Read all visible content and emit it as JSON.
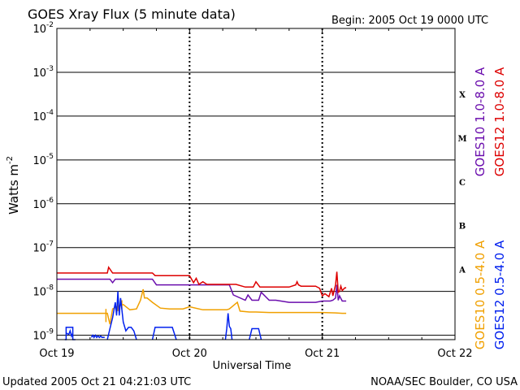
{
  "chart_data": {
    "type": "line",
    "title": "GOES Xray Flux (5 minute data)",
    "begin_label": "Begin:  2005 Oct 19 0000 UTC",
    "xlabel": "Universal Time",
    "ylabel": "Watts m",
    "ylabel_sup": "-2",
    "x_ticks": [
      "Oct 19",
      "Oct 20",
      "Oct 21",
      "Oct 22"
    ],
    "xlim_days": [
      0,
      3
    ],
    "ylim_exp": [
      -9.1,
      -2
    ],
    "log_scale": true,
    "y_ticks": [
      {
        "base": "10",
        "exp": "-2",
        "value": -2
      },
      {
        "base": "10",
        "exp": "-3",
        "value": -3
      },
      {
        "base": "10",
        "exp": "-4",
        "value": -4
      },
      {
        "base": "10",
        "exp": "-5",
        "value": -5
      },
      {
        "base": "10",
        "exp": "-6",
        "value": -6
      },
      {
        "base": "10",
        "exp": "-7",
        "value": -7
      },
      {
        "base": "10",
        "exp": "-8",
        "value": -8
      },
      {
        "base": "10",
        "exp": "-9",
        "value": -9
      }
    ],
    "flare_classes": [
      {
        "label": "X",
        "value": -3.5
      },
      {
        "label": "M",
        "value": -4.5
      },
      {
        "label": "C",
        "value": -5.5
      },
      {
        "label": "B",
        "value": -6.5
      },
      {
        "label": "A",
        "value": -7.5
      }
    ],
    "series": [
      {
        "name": "GOES12 1.0-8.0 A",
        "color": "#dd0000",
        "x": [
          0.0,
          0.38,
          0.39,
          0.42,
          0.44,
          0.72,
          0.74,
          0.8,
          1.0,
          1.03,
          1.05,
          1.07,
          1.1,
          1.13,
          1.15,
          1.17,
          1.2,
          1.25,
          1.35,
          1.42,
          1.48,
          1.5,
          1.53,
          1.6,
          1.75,
          1.8,
          1.81,
          1.82,
          1.84,
          1.95,
          1.98,
          2.0,
          2.02,
          2.05,
          2.07,
          2.08,
          2.1,
          2.11,
          2.12,
          2.13,
          2.14,
          2.15,
          2.17,
          2.18
        ],
        "y": [
          -7.58,
          -7.58,
          -7.45,
          -7.58,
          -7.58,
          -7.58,
          -7.64,
          -7.64,
          -7.64,
          -7.8,
          -7.7,
          -7.84,
          -7.78,
          -7.84,
          -7.84,
          -7.84,
          -7.84,
          -7.84,
          -7.84,
          -7.9,
          -7.9,
          -7.78,
          -7.9,
          -7.9,
          -7.9,
          -7.85,
          -7.78,
          -7.85,
          -7.88,
          -7.88,
          -7.93,
          -8.1,
          -8.05,
          -8.12,
          -7.93,
          -8.1,
          -7.85,
          -7.55,
          -8.02,
          -8.0,
          -7.88,
          -7.98,
          -7.92,
          -7.92
        ]
      },
      {
        "name": "GOES10 1.0-8.0 A",
        "color": "#6a0dad",
        "x": [
          0.0,
          0.4,
          0.42,
          0.44,
          0.72,
          0.75,
          0.8,
          1.0,
          1.2,
          1.3,
          1.33,
          1.42,
          1.44,
          1.47,
          1.52,
          1.54,
          1.6,
          1.65,
          1.75,
          1.85,
          1.95,
          2.0,
          2.04,
          2.06,
          2.08,
          2.1,
          2.11,
          2.12,
          2.13,
          2.15,
          2.18
        ],
        "y": [
          -7.72,
          -7.72,
          -7.8,
          -7.72,
          -7.72,
          -7.85,
          -7.85,
          -7.85,
          -7.85,
          -7.85,
          -8.08,
          -8.2,
          -8.08,
          -8.2,
          -8.2,
          -8.02,
          -8.2,
          -8.2,
          -8.25,
          -8.25,
          -8.25,
          -8.22,
          -8.22,
          -8.22,
          -8.2,
          -8.15,
          -7.85,
          -8.2,
          -8.1,
          -8.22,
          -8.22
        ]
      },
      {
        "name": "GOES10 0.5-4.0 A",
        "color": "#f0a000",
        "x": [
          0.0,
          0.38,
          0.4,
          0.42,
          0.45,
          0.5,
          0.55,
          0.6,
          0.63,
          0.65,
          0.66,
          0.68,
          0.72,
          0.78,
          0.85,
          0.95,
          1.0,
          1.1,
          1.2,
          1.28,
          1.3,
          1.36,
          1.38,
          1.45,
          1.5,
          1.6,
          1.75,
          1.9,
          2.0,
          2.1,
          2.15,
          2.18
        ],
        "y": [
          -8.5,
          -8.5,
          -8.75,
          -8.4,
          -8.35,
          -8.3,
          -8.42,
          -8.4,
          -8.2,
          -7.95,
          -8.15,
          -8.15,
          -8.25,
          -8.38,
          -8.4,
          -8.4,
          -8.35,
          -8.42,
          -8.42,
          -8.42,
          -8.4,
          -8.25,
          -8.45,
          -8.47,
          -8.47,
          -8.48,
          -8.48,
          -8.48,
          -8.48,
          -8.49,
          -8.5,
          -8.5
        ],
        "extra": [
          {
            "x": [
              0.37,
              0.37
            ],
            "y": [
              -8.7,
              -8.4
            ]
          },
          {
            "x": [
              0.46,
              0.46
            ],
            "y": [
              -8.25,
              -8.45
            ]
          },
          {
            "x": [
              0.49,
              0.49
            ],
            "y": [
              -8.2,
              -8.4
            ]
          }
        ]
      },
      {
        "name": "GOES12 0.5-4.0 A",
        "color": "#0020ee",
        "x": [
          0.26,
          0.27,
          0.28,
          0.29,
          0.3,
          0.31,
          0.32,
          0.33,
          0.34,
          0.35,
          0.36
        ],
        "y": [
          -9.05,
          -9.0,
          -9.05,
          -9.0,
          -9.05,
          -9.02,
          -9.05,
          -9.02,
          -9.05,
          -9.05,
          -9.05
        ],
        "extra": [
          {
            "x": [
              0.06,
              0.07,
              0.07,
              0.12,
              0.12,
              0.14
            ],
            "y": [
              -9.1,
              -9.1,
              -8.82,
              -8.82,
              -9.1,
              -9.1
            ]
          },
          {
            "x": [
              0.07,
              0.09,
              0.1,
              0.11,
              0.12
            ],
            "y": [
              -8.95,
              -8.98,
              -8.9,
              -9.02,
              -8.95
            ]
          },
          {
            "x": [
              0.38,
              0.4,
              0.42,
              0.44,
              0.45,
              0.46,
              0.47,
              0.48,
              0.5,
              0.52,
              0.54,
              0.56,
              0.58,
              0.6
            ],
            "y": [
              -9.1,
              -8.85,
              -8.6,
              -8.25,
              -8.55,
              -8.0,
              -8.55,
              -8.15,
              -8.7,
              -8.9,
              -8.82,
              -8.82,
              -8.9,
              -9.1
            ]
          },
          {
            "x": [
              0.72,
              0.74,
              0.87,
              0.9
            ],
            "y": [
              -9.1,
              -8.82,
              -8.82,
              -9.1
            ]
          },
          {
            "x": [
              1.27,
              1.28,
              1.29,
              1.3,
              1.31,
              1.32
            ],
            "y": [
              -9.1,
              -8.85,
              -8.5,
              -8.8,
              -8.85,
              -9.1
            ]
          },
          {
            "x": [
              1.45,
              1.47,
              1.52,
              1.54
            ],
            "y": [
              -9.1,
              -8.85,
              -8.85,
              -9.1
            ]
          }
        ]
      }
    ],
    "legend_left": [
      {
        "text": "GOES10 1.0-8.0 A",
        "color": "#6a0dad",
        "series": 1
      },
      {
        "text": "GOES10 0.5-4.0 A",
        "color": "#f0a000",
        "series": 2
      }
    ],
    "legend_right": [
      {
        "text": "GOES12 1.0-8.0 A",
        "color": "#dd0000",
        "series": 0
      },
      {
        "text": "GOES12 0.5-4.0 A",
        "color": "#0020ee",
        "series": 3
      }
    ],
    "footer_left": "Updated 2005 Oct 21 04:21:03 UTC",
    "footer_right": "NOAA/SEC Boulder, CO USA",
    "grid": true
  }
}
